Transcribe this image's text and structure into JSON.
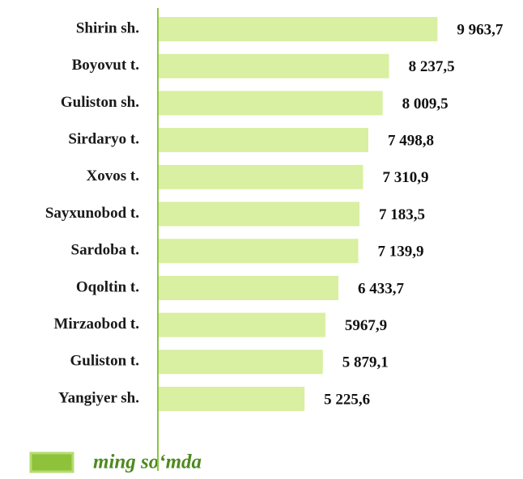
{
  "chart_data": {
    "type": "bar",
    "orientation": "horizontal",
    "categories": [
      "Shirin sh.",
      "Boyovut t.",
      "Guliston sh.",
      "Sirdaryo t.",
      "Xovos t.",
      "Sayxunobod t.",
      "Sardoba t.",
      "Oqoltin t.",
      "Mirzaobod t.",
      "Guliston t.",
      "Yangiyer sh."
    ],
    "series": [
      {
        "name": "ming so‘mda",
        "color": "#d9efa1",
        "values": [
          9963.7,
          8237.5,
          8009.5,
          7498.8,
          7310.9,
          7183.5,
          7139.9,
          6433.7,
          5967.9,
          5879.1,
          5225.6
        ],
        "value_labels": [
          "9 963,7",
          "8 237,5",
          "8 009,5",
          "7 498,8",
          "7 310,9",
          "7 183,5",
          "7 139,9",
          "6 433,7",
          "5967,9",
          "5 879,1",
          "5 225,6"
        ]
      }
    ],
    "xlim": [
      0,
      12000
    ]
  }
}
